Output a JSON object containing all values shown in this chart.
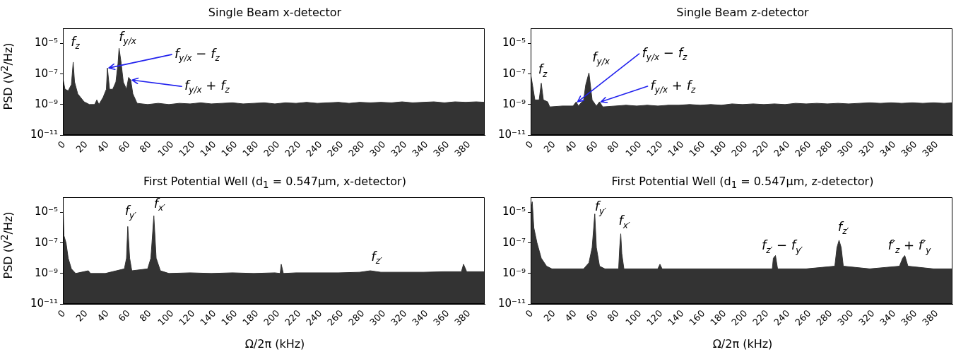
{
  "chart_data": [
    {
      "type": "area",
      "title": "Single Beam x-detector",
      "ylabel": "PSD (V$^{2}$/Hz)",
      "color": "#333333",
      "log": "y",
      "grid": false,
      "legend": false,
      "x": [
        0,
        2,
        5,
        8,
        9.7,
        11,
        14,
        20,
        25,
        30,
        32,
        34,
        38,
        41,
        42,
        44,
        47,
        50,
        52,
        53,
        55,
        57,
        60,
        62,
        64,
        66,
        70,
        80,
        90,
        100,
        110,
        120,
        130,
        140,
        150,
        160,
        170,
        180,
        190,
        200,
        210,
        220,
        230,
        240,
        250,
        260,
        270,
        280,
        290,
        300,
        310,
        320,
        330,
        340,
        350,
        360,
        370,
        380,
        390,
        398
      ],
      "values": [
        5e-08,
        1e-08,
        8e-09,
        2e-08,
        6e-07,
        3e-08,
        5e-09,
        1.5e-09,
        1e-09,
        1e-09,
        2e-09,
        1e-09,
        3e-09,
        1e-08,
        2.5e-07,
        1e-08,
        1e-08,
        3e-08,
        5e-07,
        5e-06,
        5e-07,
        3e-08,
        1e-08,
        6e-08,
        4e-08,
        5e-09,
        1.2e-09,
        1e-09,
        1.2e-09,
        1e-09,
        1.2e-09,
        1.1e-09,
        1.3e-09,
        1.1e-09,
        1.2e-09,
        1.3e-09,
        1.1e-09,
        1.2e-09,
        1.3e-09,
        1.1e-09,
        1.3e-09,
        1.2e-09,
        1.4e-09,
        1.2e-09,
        1.3e-09,
        1.4e-09,
        1.2e-09,
        1.4e-09,
        1.3e-09,
        1.4e-09,
        1.3e-09,
        1.5e-09,
        1.3e-09,
        1.4e-09,
        1.5e-09,
        1.3e-09,
        1.5e-09,
        1.4e-09,
        1.5e-09,
        1.4e-09
      ],
      "xlim": [
        0,
        398
      ],
      "xticks": [
        0,
        20,
        40,
        60,
        80,
        100,
        120,
        140,
        160,
        180,
        200,
        220,
        240,
        260,
        280,
        300,
        320,
        340,
        360,
        380
      ],
      "ylim": [
        1e-11,
        0.0001
      ],
      "yticks": [
        {
          "value": 1e-11,
          "label": "10⁻¹¹"
        },
        {
          "value": 1e-09,
          "label": "10⁻⁹"
        },
        {
          "value": 1e-07,
          "label": "10⁻⁷"
        },
        {
          "value": 1e-05,
          "label": "10⁻⁵"
        }
      ],
      "annotations": [
        {
          "text": "f$_{z}$",
          "x": 9.7,
          "y": 6e-07
        },
        {
          "text": "f$_{y/x}$",
          "x": 53,
          "y": 5e-06
        },
        {
          "text": "f$_{y/x}$ − f$_{z}$",
          "x": 42,
          "y": 2.5e-07
        },
        {
          "text": "f$_{y/x}$ + f$_{z}$",
          "x": 64,
          "y": 4e-08
        }
      ]
    },
    {
      "type": "area",
      "title": "Single Beam z-detector",
      "color": "#333333",
      "log": "y",
      "grid": false,
      "legend": false,
      "x": [
        0,
        2,
        4,
        8,
        10,
        12,
        16,
        18,
        30,
        40,
        43,
        45,
        50,
        52,
        55,
        58,
        62,
        65,
        68,
        80,
        90,
        100,
        110,
        120,
        130,
        140,
        150,
        160,
        170,
        180,
        190,
        200,
        210,
        220,
        230,
        240,
        250,
        260,
        270,
        280,
        290,
        300,
        310,
        320,
        330,
        340,
        350,
        360,
        370,
        380,
        390,
        398
      ],
      "values": [
        1e-07,
        1.5e-08,
        2e-09,
        2e-09,
        2.5e-08,
        2e-09,
        1.5e-09,
        7e-10,
        8e-10,
        8e-10,
        1.5e-09,
        8e-10,
        2e-09,
        2e-08,
        1.2e-07,
        2e-09,
        8e-10,
        1.5e-09,
        7e-10,
        8e-10,
        9e-10,
        8e-10,
        9e-10,
        8e-10,
        9e-10,
        9e-10,
        1e-09,
        9e-10,
        1e-09,
        9e-10,
        1.1e-09,
        1e-09,
        1.1e-09,
        1e-09,
        1.1e-09,
        1e-09,
        1.2e-09,
        1.1e-09,
        1.2e-09,
        1.1e-09,
        1.2e-09,
        1.1e-09,
        1.2e-09,
        1.3e-09,
        1.2e-09,
        1.3e-09,
        1.2e-09,
        1.3e-09,
        1.2e-09,
        1.3e-09,
        1.2e-09,
        1.3e-09
      ],
      "xlim": [
        0,
        398
      ],
      "xticks": [
        0,
        20,
        40,
        60,
        80,
        100,
        120,
        140,
        160,
        180,
        200,
        220,
        240,
        260,
        280,
        300,
        320,
        340,
        360,
        380
      ],
      "ylim": [
        1e-11,
        0.0001
      ],
      "yticks": [
        {
          "value": 1e-11,
          "label": "10⁻¹¹"
        },
        {
          "value": 1e-09,
          "label": "10⁻⁹"
        },
        {
          "value": 1e-07,
          "label": "10⁻⁷"
        },
        {
          "value": 1e-05,
          "label": "10⁻⁵"
        }
      ],
      "annotations": [
        {
          "text": "f$_{z}$",
          "x": 10,
          "y": 2.5e-08
        },
        {
          "text": "f$_{y/x}$",
          "x": 55,
          "y": 1.2e-07
        },
        {
          "text": "f$_{y/x}$ − f$_{z}$",
          "x": 43,
          "y": 1.5e-09
        },
        {
          "text": "f$_{y/x}$ + f$_{z}$",
          "x": 65,
          "y": 1.5e-09
        }
      ]
    },
    {
      "type": "area",
      "title": "First Potential Well (d$_{1}$ = 0.547μm, x-detector)",
      "xlabel": "Ω/2π (kHz)",
      "ylabel": "PSD (V$^{2}$/Hz)",
      "color": "#333333",
      "log": "y",
      "grid": false,
      "legend": false,
      "x": [
        0,
        1,
        3,
        5,
        8,
        12,
        24,
        26,
        40,
        58,
        60,
        61.2,
        63,
        65,
        80,
        83,
        85.8,
        88,
        92,
        100,
        120,
        140,
        160,
        180,
        200,
        205,
        206,
        208,
        220,
        240,
        260,
        280,
        290,
        300,
        320,
        340,
        360,
        376,
        378,
        381,
        398
      ],
      "values": [
        5e-05,
        3e-07,
        1e-07,
        1e-08,
        2e-09,
        1e-09,
        1.5e-09,
        1e-09,
        1e-09,
        2e-09,
        1e-08,
        1.2e-06,
        1e-08,
        1.5e-09,
        2e-09,
        1e-08,
        6e-06,
        1e-08,
        1.5e-09,
        1e-09,
        1.1e-09,
        1e-09,
        1.1e-09,
        1e-09,
        1.1e-09,
        1e-09,
        4e-09,
        1e-09,
        1.1e-09,
        1.1e-09,
        1.1e-09,
        1.2e-09,
        1.5e-09,
        1.2e-09,
        1.2e-09,
        1.2e-09,
        1.3e-09,
        1.3e-09,
        4e-09,
        1.3e-09,
        1.3e-09
      ],
      "xlim": [
        0,
        398
      ],
      "xticks": [
        0,
        20,
        40,
        60,
        80,
        100,
        120,
        140,
        160,
        180,
        200,
        220,
        240,
        260,
        280,
        300,
        320,
        340,
        360,
        380
      ],
      "ylim": [
        1e-11,
        0.0001
      ],
      "yticks": [
        {
          "value": 1e-11,
          "label": "10⁻¹¹"
        },
        {
          "value": 1e-09,
          "label": "10⁻⁹"
        },
        {
          "value": 1e-07,
          "label": "10⁻⁷"
        },
        {
          "value": 1e-05,
          "label": "10⁻⁵"
        }
      ],
      "annotations": [
        {
          "text": "f$_{y′}$",
          "x": 61.2,
          "y": 1.2e-06
        },
        {
          "text": "f$_{x′}$",
          "x": 85.8,
          "y": 6e-06
        },
        {
          "text": "f$_{z′}$",
          "x": 290,
          "y": 1.5e-09
        }
      ]
    },
    {
      "type": "area",
      "title": "First Potential Well (d$_{1}$ = 0.547μm, z-detector)",
      "xlabel": "Ω/2π (kHz)",
      "color": "#333333",
      "log": "y",
      "grid": false,
      "legend": false,
      "x": [
        0,
        1.5,
        3,
        6,
        10,
        15,
        20,
        50,
        55,
        58,
        60.5,
        62,
        65,
        70,
        83,
        84,
        85,
        86,
        88,
        120,
        122,
        124,
        160,
        200,
        228,
        229,
        231,
        233,
        260,
        287,
        289,
        291,
        293,
        295,
        320,
        348,
        351,
        353,
        356,
        380,
        398
      ],
      "values": [
        1e-05,
        5e-05,
        1e-06,
        1e-07,
        1e-08,
        3e-09,
        2e-09,
        2e-09,
        5e-09,
        5e-08,
        8e-06,
        5e-08,
        3e-09,
        2e-09,
        2e-09,
        5e-08,
        4e-07,
        2e-08,
        2e-09,
        2e-09,
        4e-09,
        2e-09,
        2e-09,
        2e-09,
        2e-09,
        1e-08,
        1.5e-08,
        2e-09,
        2e-09,
        3e-09,
        5e-08,
        1.5e-07,
        5e-08,
        3e-09,
        2e-09,
        3e-09,
        1e-08,
        1.5e-08,
        3e-09,
        2e-09,
        2e-09
      ],
      "xlim": [
        0,
        398
      ],
      "xticks": [
        0,
        20,
        40,
        60,
        80,
        100,
        120,
        140,
        160,
        180,
        200,
        220,
        240,
        260,
        280,
        300,
        320,
        340,
        360,
        380
      ],
      "ylim": [
        1e-11,
        0.0001
      ],
      "yticks": [
        {
          "value": 1e-11,
          "label": "10⁻¹¹"
        },
        {
          "value": 1e-09,
          "label": "10⁻⁹"
        },
        {
          "value": 1e-07,
          "label": "10⁻⁷"
        },
        {
          "value": 1e-05,
          "label": "10⁻⁵"
        }
      ],
      "annotations": [
        {
          "text": "f$_{y′}$",
          "x": 60.5,
          "y": 8e-06
        },
        {
          "text": "f$_{x′}$",
          "x": 85,
          "y": 4e-07
        },
        {
          "text": "f$_{z′}$ − f$_{y′}$",
          "x": 230,
          "y": 1.5e-08
        },
        {
          "text": "f$_{z′}$",
          "x": 291,
          "y": 1.5e-07
        },
        {
          "text": "f′$_{z}$ + f′$_{y}$",
          "x": 352,
          "y": 1.5e-08
        }
      ]
    }
  ]
}
